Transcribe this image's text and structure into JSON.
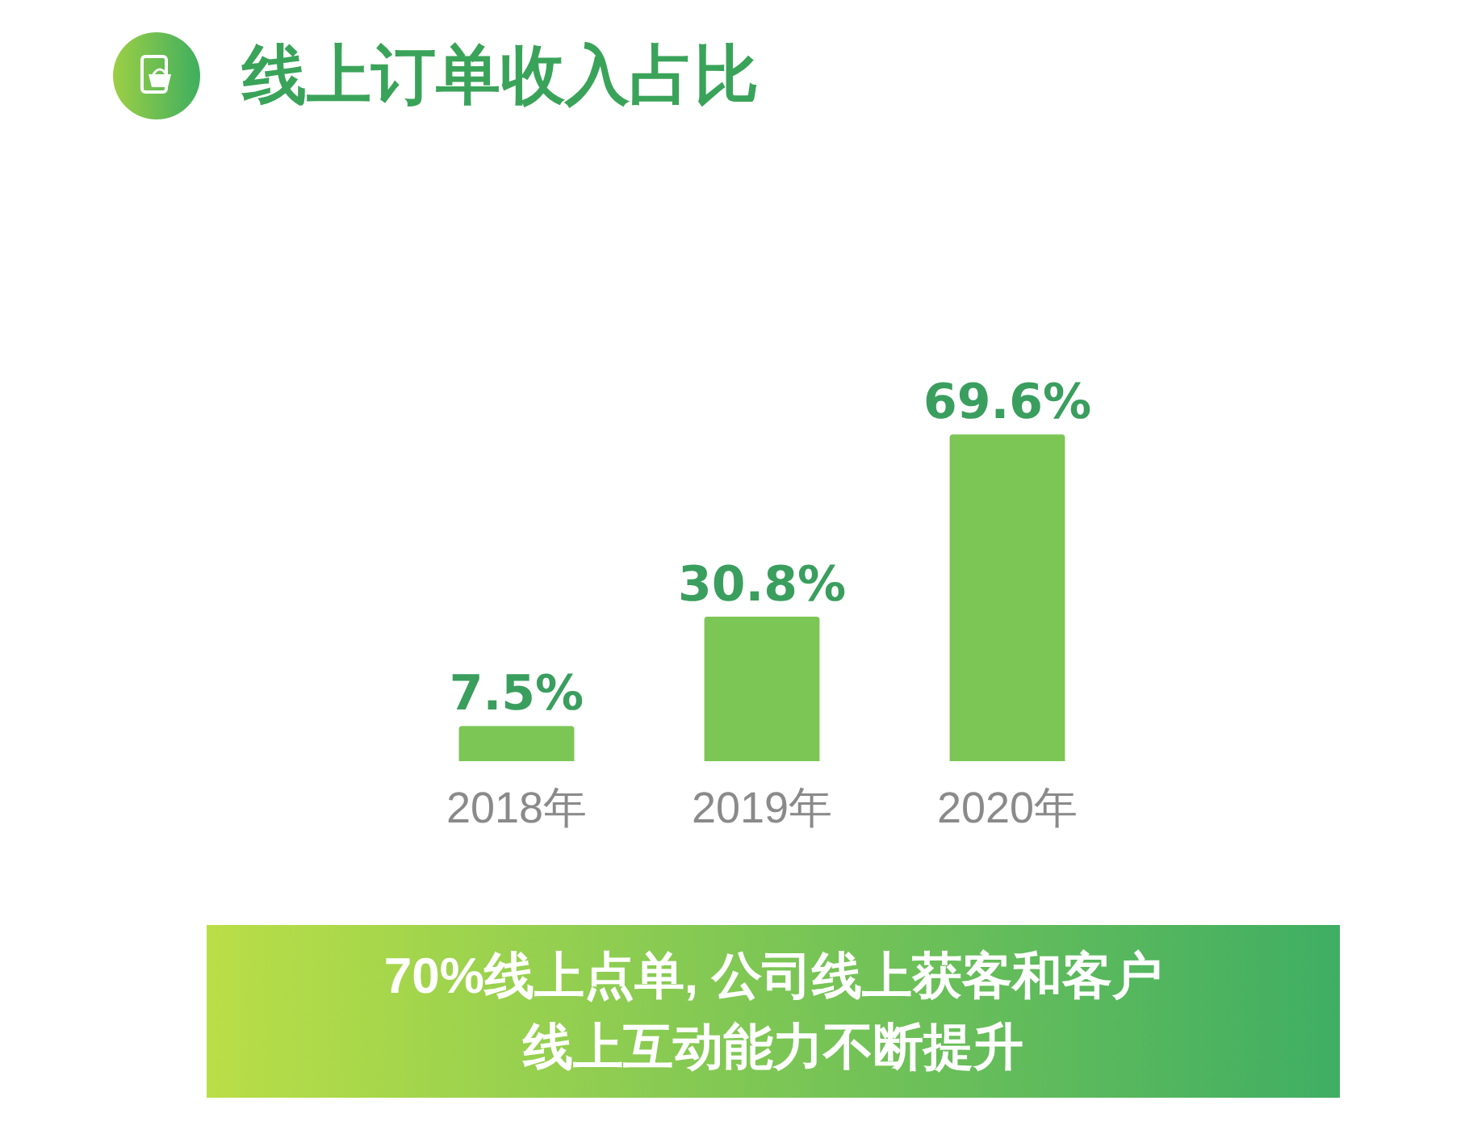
{
  "chart_data": {
    "type": "bar",
    "title": "线上订单收入占比",
    "categories": [
      "2018年",
      "2019年",
      "2020年"
    ],
    "values": [
      7.5,
      30.8,
      69.6
    ],
    "value_labels": [
      "7.5%",
      "30.8%",
      "69.6%"
    ],
    "color": "#7cc655",
    "annotations": [
      "70%线上点单, 公司线上获客和客户线上互动能力不断提升"
    ]
  }
}
